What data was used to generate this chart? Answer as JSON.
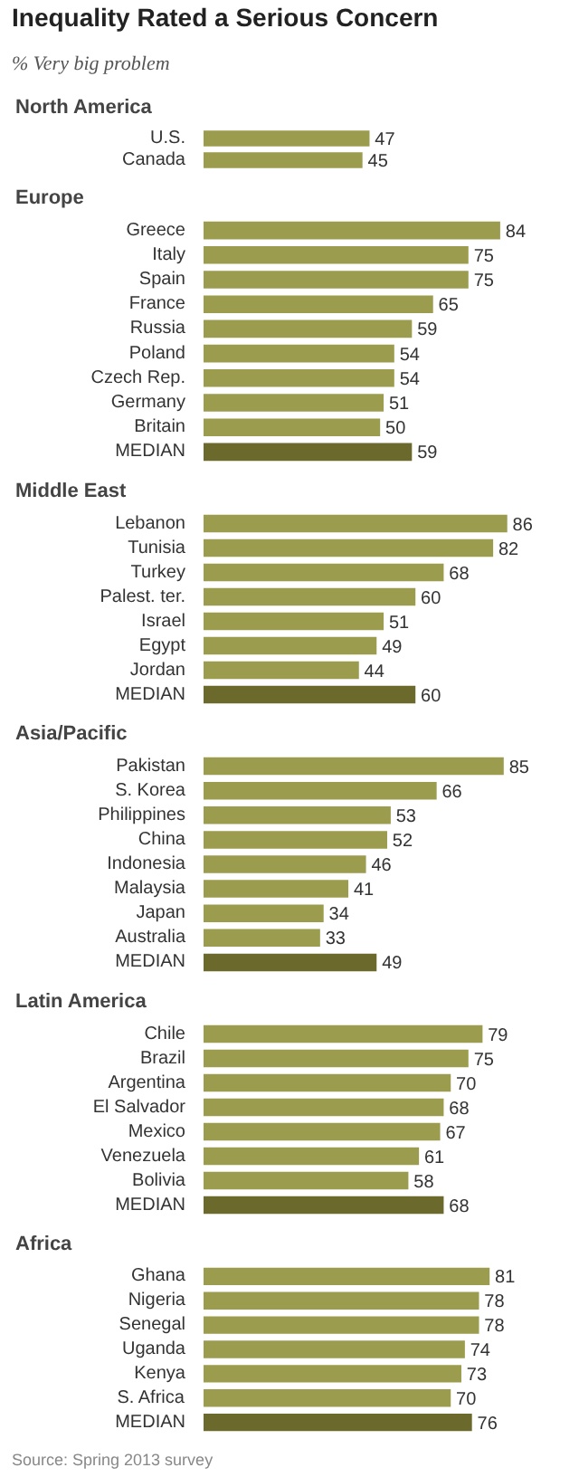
{
  "chart_data": [
    {
      "type": "other",
      "title": "Inequality Rated a Serious Concern",
      "subtitle": "% Very big problem"
    },
    {
      "type": "bar",
      "orientation": "horizontal",
      "title": "North America",
      "categories": [
        "U.S.",
        "Canada"
      ],
      "values": [
        47,
        45
      ],
      "colors": [
        "#9c9c4e",
        "#9c9c4e"
      ],
      "data_labels": true
    },
    {
      "type": "bar",
      "orientation": "horizontal",
      "title": "Europe",
      "categories": [
        "Greece",
        "Italy",
        "Spain",
        "France",
        "Russia",
        "Poland",
        "Czech Rep.",
        "Germany",
        "Britain",
        "MEDIAN"
      ],
      "values": [
        84,
        75,
        75,
        65,
        59,
        54,
        54,
        51,
        50,
        59
      ],
      "colors": [
        "#9c9c4e",
        "#9c9c4e",
        "#9c9c4e",
        "#9c9c4e",
        "#9c9c4e",
        "#9c9c4e",
        "#9c9c4e",
        "#9c9c4e",
        "#9c9c4e",
        "#6b6a2c"
      ],
      "data_labels": true
    },
    {
      "type": "bar",
      "orientation": "horizontal",
      "title": "Middle East",
      "categories": [
        "Lebanon",
        "Tunisia",
        "Turkey",
        "Palest. ter.",
        "Israel",
        "Egypt",
        "Jordan",
        "MEDIAN"
      ],
      "values": [
        86,
        82,
        68,
        60,
        51,
        49,
        44,
        60
      ],
      "colors": [
        "#9c9c4e",
        "#9c9c4e",
        "#9c9c4e",
        "#9c9c4e",
        "#9c9c4e",
        "#9c9c4e",
        "#9c9c4e",
        "#6b6a2c"
      ],
      "data_labels": true
    },
    {
      "type": "bar",
      "orientation": "horizontal",
      "title": "Asia/Pacific",
      "categories": [
        "Pakistan",
        "S. Korea",
        "Philippines",
        "China",
        "Indonesia",
        "Malaysia",
        "Japan",
        "Australia",
        "MEDIAN"
      ],
      "values": [
        85,
        66,
        53,
        52,
        46,
        41,
        34,
        33,
        49
      ],
      "colors": [
        "#9c9c4e",
        "#9c9c4e",
        "#9c9c4e",
        "#9c9c4e",
        "#9c9c4e",
        "#9c9c4e",
        "#9c9c4e",
        "#9c9c4e",
        "#6b6a2c"
      ],
      "data_labels": true
    },
    {
      "type": "bar",
      "orientation": "horizontal",
      "title": "Latin America",
      "categories": [
        "Chile",
        "Brazil",
        "Argentina",
        "El Salvador",
        "Mexico",
        "Venezuela",
        "Bolivia",
        "MEDIAN"
      ],
      "values": [
        79,
        75,
        70,
        68,
        67,
        61,
        58,
        68
      ],
      "colors": [
        "#9c9c4e",
        "#9c9c4e",
        "#9c9c4e",
        "#9c9c4e",
        "#9c9c4e",
        "#9c9c4e",
        "#9c9c4e",
        "#6b6a2c"
      ],
      "data_labels": true
    },
    {
      "type": "bar",
      "orientation": "horizontal",
      "title": "Africa",
      "categories": [
        "Ghana",
        "Nigeria",
        "Senegal",
        "Uganda",
        "Kenya",
        "S. Africa",
        "MEDIAN"
      ],
      "values": [
        81,
        78,
        78,
        74,
        73,
        70,
        76
      ],
      "colors": [
        "#9c9c4e",
        "#9c9c4e",
        "#9c9c4e",
        "#9c9c4e",
        "#9c9c4e",
        "#9c9c4e",
        "#6b6a2c"
      ],
      "data_labels": true,
      "annotations": [
        "Source: Spring 2013 survey"
      ]
    }
  ]
}
